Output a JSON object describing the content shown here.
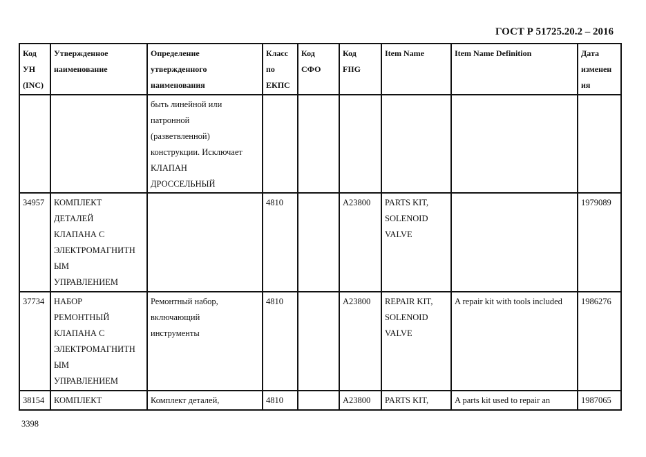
{
  "header": {
    "doc_title": "ГОСТ Р 51725.20.2 – 2016"
  },
  "table": {
    "columns": [
      "Код\nУН\n(INC)",
      "Утвержденное\nнаименование",
      "Определение\nутвержденного\nнаименования",
      "Класс\nпо\nЕКПС",
      "Код\nСФО",
      "Код\nFIIG",
      "Item Name",
      "Item Name Definition",
      "Дата\nизменен\nия"
    ],
    "rows": [
      [
        "",
        "",
        "быть линейной или\nпатронной\n(разветвленной)\nконструкции. Исключает\nКЛАПАН\nДРОССЕЛЬНЫЙ",
        "",
        "",
        "",
        "",
        "",
        ""
      ],
      [
        "34957",
        "КОМПЛЕКТ\nДЕТАЛЕЙ\nКЛАПАНА С\nЭЛЕКТРОМАГНИТН\nЫМ\nУПРАВЛЕНИЕМ",
        "",
        "4810",
        "",
        "A23800",
        "PARTS KIT,\nSOLENOID\nVALVE",
        "",
        "1979089"
      ],
      [
        "37734",
        "НАБОР\nРЕМОНТНЫЙ\nКЛАПАНА С\nЭЛЕКТРОМАГНИТН\nЫМ\nУПРАВЛЕНИЕМ",
        "Ремонтный набор,\nвключающий\nинструменты",
        "4810",
        "",
        "A23800",
        "REPAIR KIT,\nSOLENOID\nVALVE",
        "A repair kit with tools included",
        "1986276"
      ],
      [
        "38154",
        "КОМПЛЕКТ",
        "Комплект деталей,",
        "4810",
        "",
        "A23800",
        "PARTS KIT,",
        "A parts kit used to repair an",
        "1987065"
      ]
    ]
  },
  "footer": {
    "page_number": "3398"
  }
}
